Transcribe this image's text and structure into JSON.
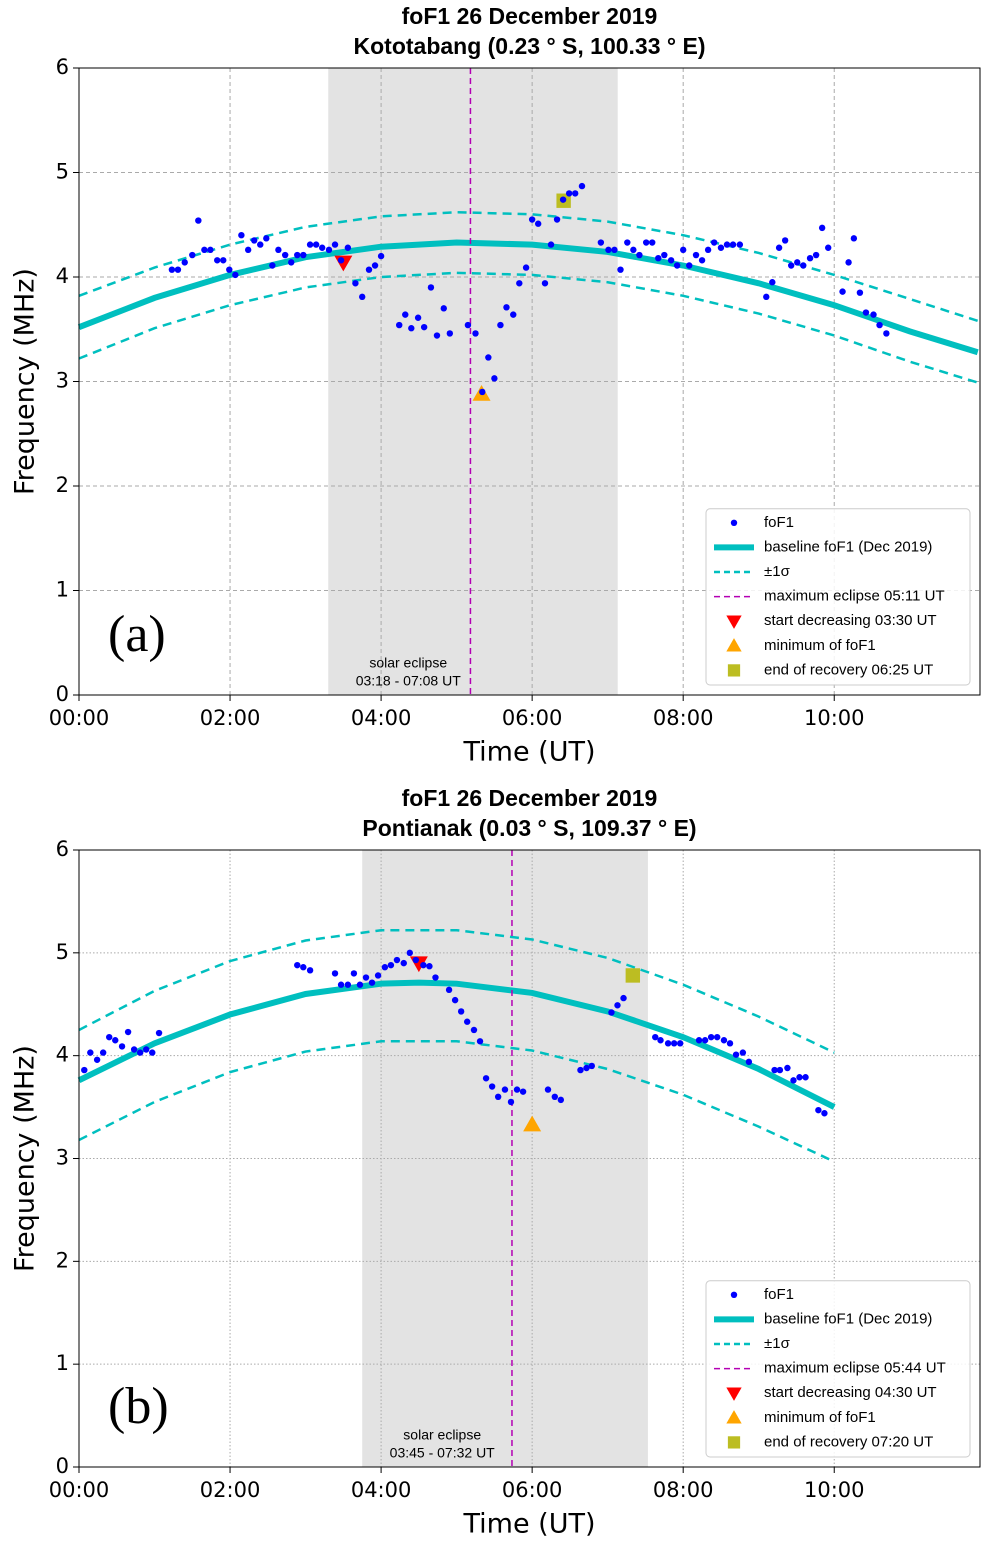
{
  "chart_data": [
    {
      "type": "line",
      "title": "foF1 26 December 2019",
      "subtitle": "Kototabang (0.23 ° S, 100.33 ° E)",
      "panel_label": "(a)",
      "x_label": "Time (UT)",
      "y_label": "Frequency (MHz)",
      "xlim": [
        0,
        11.93
      ],
      "ylim": [
        0,
        6
      ],
      "xticks": [
        {
          "value": 0,
          "label": "00:00"
        },
        {
          "value": 2,
          "label": "02:00"
        },
        {
          "value": 4,
          "label": "04:00"
        },
        {
          "value": 6,
          "label": "06:00"
        },
        {
          "value": 8,
          "label": "08:00"
        },
        {
          "value": 10,
          "label": "10:00"
        }
      ],
      "yticks": [
        0,
        1,
        2,
        3,
        4,
        5,
        6
      ],
      "grid": "dashed",
      "legend": "lower right",
      "eclipse": {
        "start": 3.3,
        "end": 7.133,
        "color": "#e3e3e3",
        "label": [
          "solar eclipse",
          "03:18 - 07:08 UT"
        ]
      },
      "series": [
        {
          "name": "foF1",
          "color": "#0000ff",
          "style": "dot",
          "x": [
            1.23,
            1.31,
            1.4,
            1.5,
            1.58,
            1.66,
            1.74,
            1.83,
            1.91,
            1.99,
            2.07,
            2.15,
            2.24,
            2.32,
            2.4,
            2.48,
            2.56,
            2.64,
            2.73,
            2.81,
            2.89,
            2.97,
            3.06,
            3.14,
            3.22,
            3.31,
            3.39,
            3.47,
            3.56,
            3.66,
            3.75,
            3.84,
            3.92,
            4.0,
            4.24,
            4.32,
            4.4,
            4.49,
            4.57,
            4.66,
            4.74,
            4.83,
            4.91,
            5.15,
            5.25,
            5.34,
            5.42,
            5.5,
            5.58,
            5.66,
            5.75,
            5.83,
            5.92,
            6.0,
            6.08,
            6.17,
            6.25,
            6.33,
            6.41,
            6.49,
            6.57,
            6.66,
            6.91,
            7.01,
            7.09,
            7.17,
            7.26,
            7.34,
            7.42,
            7.51,
            7.59,
            7.67,
            7.75,
            7.84,
            7.92,
            8.0,
            8.08,
            8.17,
            8.25,
            8.33,
            8.41,
            8.5,
            8.58,
            8.66,
            8.75,
            9.1,
            9.18,
            9.27,
            9.35,
            9.43,
            9.51,
            9.59,
            9.68,
            9.76,
            9.84,
            9.92,
            10.11,
            10.19,
            10.26,
            10.34,
            10.42,
            10.52,
            10.6,
            10.69
          ],
          "values": [
            4.07,
            4.07,
            4.14,
            4.21,
            4.54,
            4.26,
            4.26,
            4.16,
            4.16,
            4.07,
            4.02,
            4.4,
            4.26,
            4.35,
            4.31,
            4.37,
            4.11,
            4.26,
            4.21,
            4.14,
            4.21,
            4.21,
            4.31,
            4.31,
            4.28,
            4.26,
            4.31,
            4.16,
            4.28,
            3.94,
            3.81,
            4.07,
            4.11,
            4.2,
            3.54,
            3.64,
            3.51,
            3.61,
            3.52,
            3.9,
            3.44,
            3.7,
            3.46,
            3.54,
            3.46,
            2.9,
            3.23,
            3.03,
            3.54,
            3.71,
            3.64,
            3.94,
            4.09,
            4.55,
            4.51,
            3.94,
            4.31,
            4.55,
            4.74,
            4.8,
            4.8,
            4.87,
            4.33,
            4.26,
            4.26,
            4.07,
            4.33,
            4.26,
            4.21,
            4.33,
            4.33,
            4.18,
            4.21,
            4.16,
            4.11,
            4.26,
            4.11,
            4.21,
            4.16,
            4.26,
            4.33,
            4.28,
            4.31,
            4.31,
            4.31,
            3.81,
            3.95,
            4.28,
            4.35,
            4.11,
            4.14,
            4.11,
            4.18,
            4.21,
            4.47,
            4.28,
            3.86,
            4.14,
            4.37,
            3.85,
            3.66,
            3.64,
            3.54,
            3.46
          ]
        },
        {
          "name": "baseline foF1 (Dec 2019)",
          "color": "#00bfbf",
          "style": "line",
          "x": [
            0,
            1,
            2,
            3,
            4,
            5,
            6,
            7,
            8,
            9,
            10,
            11,
            11.9
          ],
          "values": [
            3.52,
            3.8,
            4.02,
            4.19,
            4.29,
            4.33,
            4.31,
            4.24,
            4.11,
            3.94,
            3.73,
            3.48,
            3.28
          ]
        },
        {
          "name": "±1σ",
          "color": "#00bfbf",
          "style": "dashed",
          "x": [
            0,
            1,
            2,
            3,
            4,
            5,
            6,
            7,
            8,
            9,
            10,
            11,
            11.9
          ],
          "values": [
            3.82,
            4.09,
            4.31,
            4.48,
            4.58,
            4.62,
            4.6,
            4.53,
            4.4,
            4.23,
            4.02,
            3.79,
            3.58
          ]
        },
        {
          "color": "#00bfbf",
          "style": "dashed",
          "x": [
            0,
            1,
            2,
            3,
            4,
            5,
            6,
            7,
            8,
            9,
            10,
            11,
            11.9
          ],
          "values": [
            3.22,
            3.51,
            3.73,
            3.9,
            4.0,
            4.04,
            4.02,
            3.95,
            3.82,
            3.65,
            3.44,
            3.19,
            2.99
          ]
        },
        {
          "name": "maximum eclipse 05:11 UT",
          "color": "#b400b4",
          "style": "vline-dashed",
          "x": [
            5.183
          ]
        },
        {
          "name": "start decreasing 03:30 UT",
          "color": "#ff0000",
          "style": "triangle-down",
          "x": [
            3.5
          ],
          "values": [
            4.14
          ]
        },
        {
          "name": "minimum of foF1",
          "color": "#ffa500",
          "style": "triangle-up",
          "x": [
            5.33
          ],
          "values": [
            2.88
          ]
        },
        {
          "name": "end of recovery 06:25 UT",
          "color": "#bcbd22",
          "style": "square",
          "x": [
            6.417
          ],
          "values": [
            4.73
          ]
        }
      ]
    },
    {
      "type": "line",
      "title": "foF1 26 December 2019",
      "subtitle": "Pontianak (0.03 ° S, 109.37 ° E)",
      "panel_label": "(b)",
      "x_label": "Time (UT)",
      "y_label": "Frequency (MHz)",
      "xlim": [
        0,
        11.93
      ],
      "ylim": [
        0,
        6
      ],
      "xticks": [
        {
          "value": 0,
          "label": "00:00"
        },
        {
          "value": 2,
          "label": "02:00"
        },
        {
          "value": 4,
          "label": "04:00"
        },
        {
          "value": 6,
          "label": "06:00"
        },
        {
          "value": 8,
          "label": "08:00"
        },
        {
          "value": 10,
          "label": "10:00"
        }
      ],
      "yticks": [
        0,
        1,
        2,
        3,
        4,
        5,
        6
      ],
      "grid": "dotted",
      "legend": "lower right",
      "eclipse": {
        "start": 3.75,
        "end": 7.533,
        "color": "#e3e3e3",
        "label": [
          "solar eclipse",
          "03:45 - 07:32 UT"
        ]
      },
      "series": [
        {
          "name": "foF1",
          "color": "#0000ff",
          "style": "dot",
          "x": [
            0.07,
            0.15,
            0.24,
            0.32,
            0.4,
            0.48,
            0.57,
            0.65,
            0.73,
            0.81,
            0.89,
            0.97,
            1.06,
            2.89,
            2.97,
            3.06,
            3.39,
            3.47,
            3.56,
            3.64,
            3.72,
            3.8,
            3.88,
            3.96,
            4.05,
            4.13,
            4.21,
            4.3,
            4.38,
            4.46,
            4.56,
            4.64,
            4.72,
            4.9,
            4.98,
            5.06,
            5.14,
            5.23,
            5.31,
            5.39,
            5.47,
            5.55,
            5.64,
            5.72,
            5.8,
            5.88,
            6.21,
            6.3,
            6.38,
            6.64,
            6.72,
            6.79,
            7.05,
            7.13,
            7.21,
            7.63,
            7.7,
            7.8,
            7.88,
            7.96,
            8.21,
            8.29,
            8.37,
            8.45,
            8.54,
            8.62,
            8.7,
            8.79,
            8.87,
            9.21,
            9.28,
            9.38,
            9.46,
            9.54,
            9.62,
            9.79,
            9.87
          ],
          "values": [
            3.86,
            4.03,
            3.96,
            4.03,
            4.18,
            4.15,
            4.09,
            4.23,
            4.06,
            4.03,
            4.06,
            4.03,
            4.22,
            4.88,
            4.86,
            4.83,
            4.8,
            4.69,
            4.69,
            4.8,
            4.69,
            4.76,
            4.71,
            4.78,
            4.86,
            4.88,
            4.93,
            4.9,
            5.0,
            4.93,
            4.88,
            4.87,
            4.76,
            4.64,
            4.54,
            4.43,
            4.33,
            4.25,
            4.14,
            3.78,
            3.7,
            3.6,
            3.67,
            3.55,
            3.67,
            3.65,
            3.67,
            3.6,
            3.57,
            3.86,
            3.88,
            3.9,
            4.42,
            4.49,
            4.56,
            4.18,
            4.15,
            4.12,
            4.12,
            4.12,
            4.15,
            4.15,
            4.18,
            4.18,
            4.15,
            4.12,
            4.01,
            4.03,
            3.94,
            3.86,
            3.86,
            3.88,
            3.76,
            3.79,
            3.79,
            3.47,
            3.44
          ]
        },
        {
          "name": "baseline foF1 (Dec 2019)",
          "color": "#00bfbf",
          "style": "line",
          "x": [
            0,
            1,
            2,
            3,
            4,
            4.5,
            5,
            6,
            7,
            8,
            9,
            10
          ],
          "values": [
            3.76,
            4.12,
            4.4,
            4.6,
            4.7,
            4.71,
            4.7,
            4.61,
            4.43,
            4.18,
            3.87,
            3.5
          ]
        },
        {
          "name": "±1σ",
          "color": "#00bfbf",
          "style": "dashed",
          "x": [
            0,
            1,
            2,
            3,
            4,
            5,
            6,
            7,
            8,
            9,
            10
          ],
          "values": [
            4.25,
            4.63,
            4.92,
            5.12,
            5.22,
            5.22,
            5.13,
            4.95,
            4.69,
            4.38,
            4.03
          ]
        },
        {
          "color": "#00bfbf",
          "style": "dashed",
          "x": [
            0,
            1,
            2,
            3,
            4,
            5,
            6,
            7,
            8,
            9,
            10
          ],
          "values": [
            3.18,
            3.55,
            3.84,
            4.04,
            4.14,
            4.14,
            4.05,
            3.87,
            3.62,
            3.31,
            2.97
          ]
        },
        {
          "name": "maximum eclipse 05:44 UT",
          "color": "#b400b4",
          "style": "vline-dashed",
          "x": [
            5.733
          ]
        },
        {
          "name": "start decreasing 04:30 UT",
          "color": "#ff0000",
          "style": "triangle-down",
          "x": [
            4.5
          ],
          "values": [
            4.9
          ]
        },
        {
          "name": "minimum of foF1",
          "color": "#ffa500",
          "style": "triangle-up",
          "x": [
            6.0
          ],
          "values": [
            3.33
          ]
        },
        {
          "name": "end of recovery 07:20 UT",
          "color": "#bcbd22",
          "style": "square",
          "x": [
            7.333
          ],
          "values": [
            4.78
          ]
        }
      ]
    }
  ]
}
